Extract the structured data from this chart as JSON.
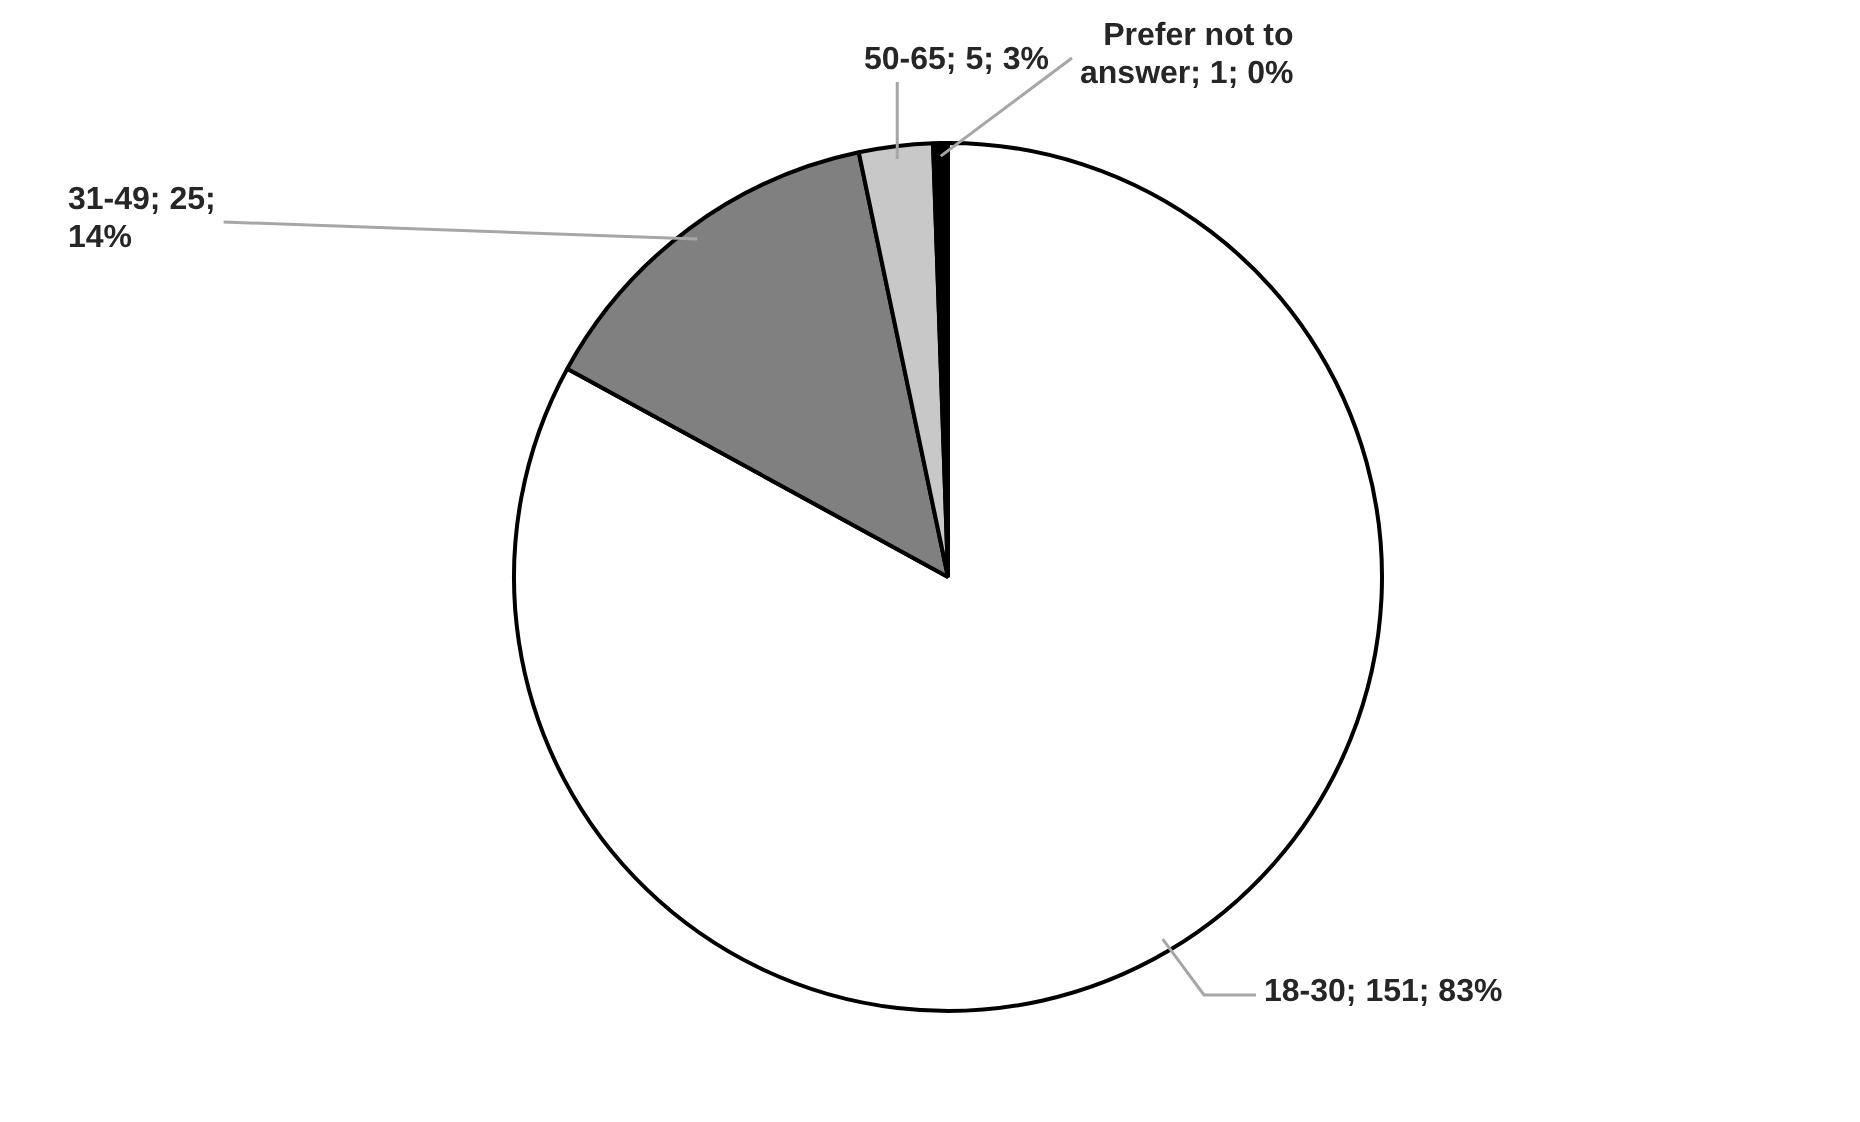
{
  "chart_data": {
    "type": "pie",
    "categories": [
      "18-30; 151; 83%",
      "31-49; 25; 14%",
      "50-65; 5; 3%",
      "Prefer not to answer; 1; 0%"
    ],
    "values": [
      151,
      25,
      5,
      1
    ],
    "colors": [
      "#ffffff",
      "#808080",
      "#c8c8c8",
      "#000000"
    ],
    "legend": false
  }
}
